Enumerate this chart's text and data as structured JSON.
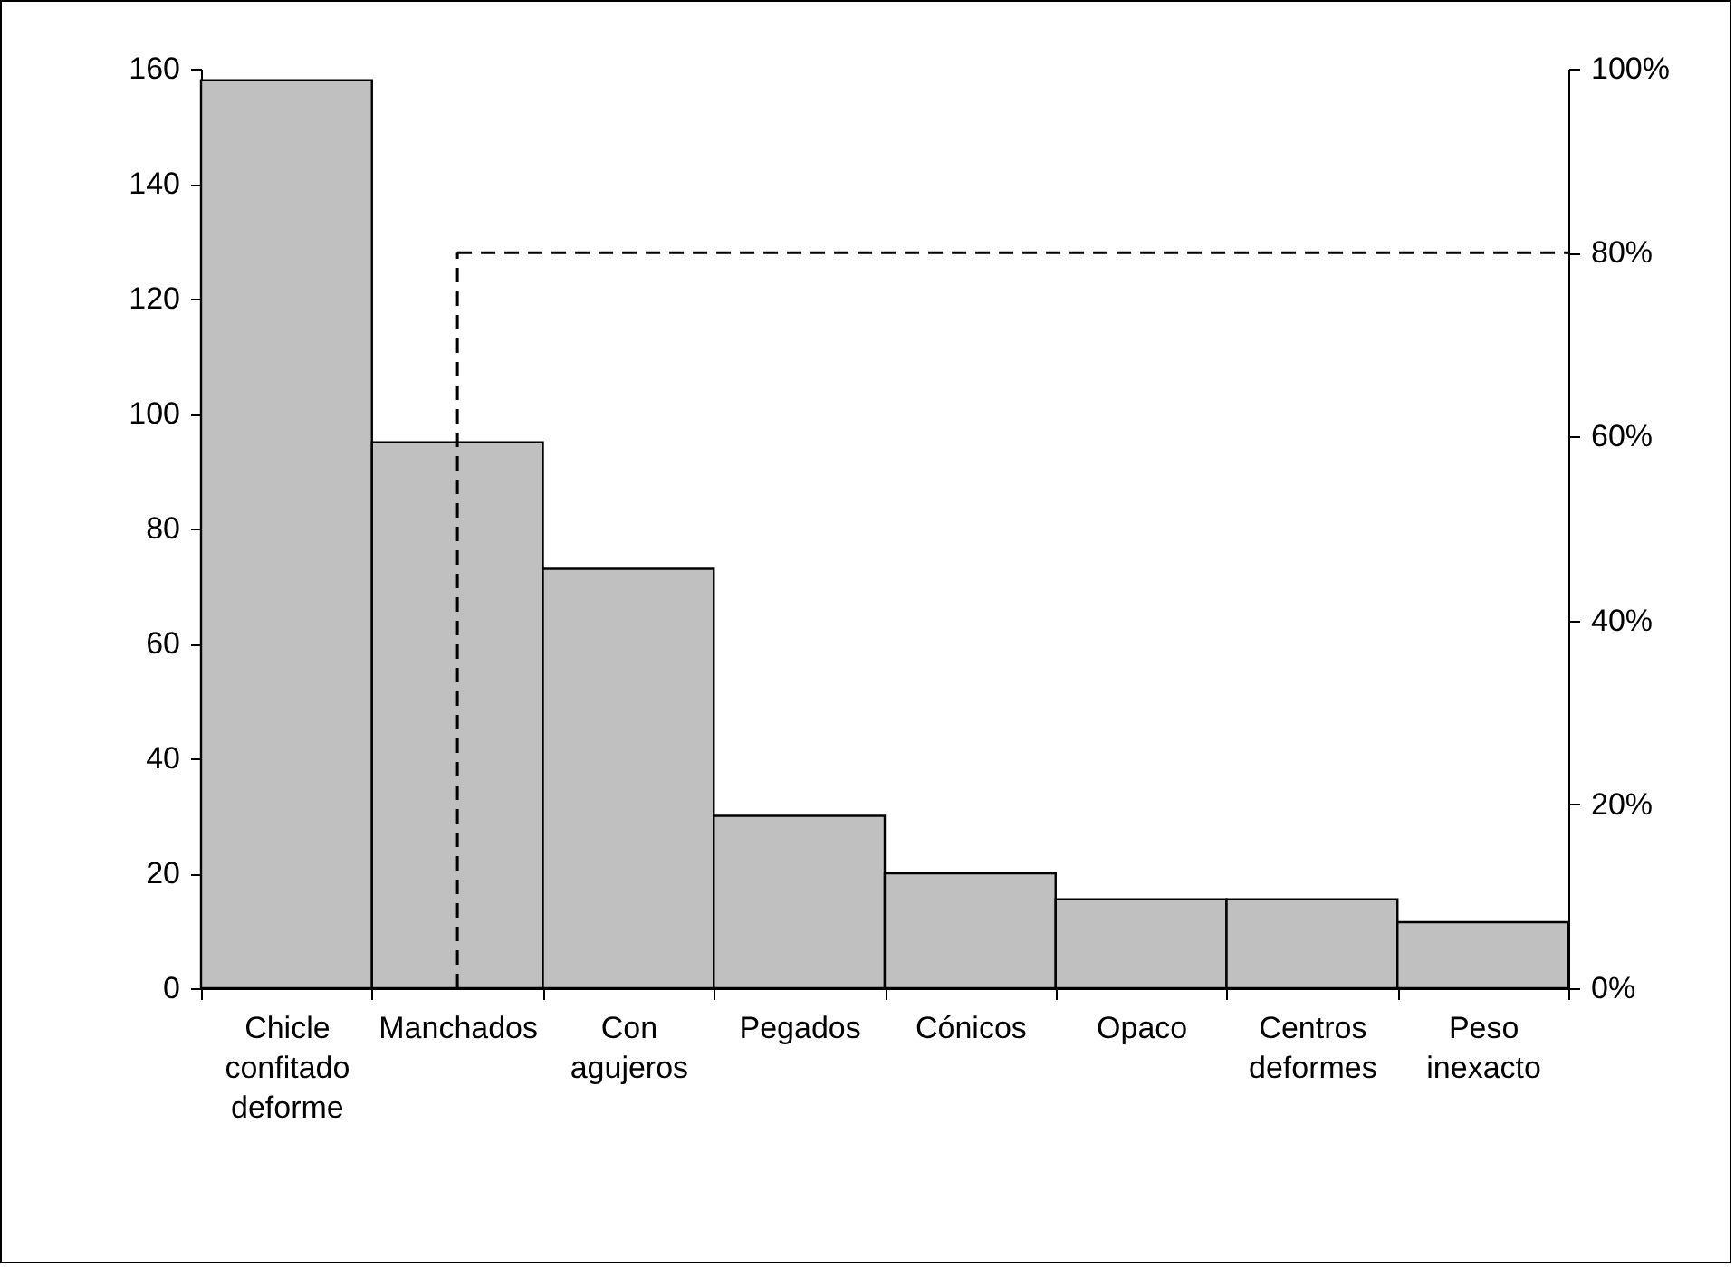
{
  "chart_data": {
    "type": "bar",
    "categories": [
      "Chicle confitado deforme",
      "Manchados",
      "Con agujeros",
      "Pegados",
      "Cónicos",
      "Opaco",
      "Centros deformes",
      "Peso inexacto"
    ],
    "values": [
      158,
      95,
      73,
      30,
      20,
      15.5,
      15.5,
      11.5
    ],
    "color": "#c0c0c0",
    "ylim": [
      0,
      160
    ],
    "yticks": [
      0,
      20,
      40,
      60,
      80,
      100,
      120,
      140,
      160
    ],
    "y2lim": [
      0,
      100
    ],
    "y2ticks": [
      {
        "value": 0,
        "label": "0%"
      },
      {
        "value": 20,
        "label": "20%"
      },
      {
        "value": 40,
        "label": "40%"
      },
      {
        "value": 60,
        "label": "60%"
      },
      {
        "value": 80,
        "label": "80%"
      },
      {
        "value": 100,
        "label": "100%"
      }
    ],
    "ref_lines": [
      {
        "axis": "y2",
        "value": 80,
        "line_style": "dashed",
        "color": "#000000"
      },
      {
        "axis": "x",
        "value": "Manchados",
        "line_style": "dashed",
        "color": "#000000"
      }
    ],
    "grid": false
  }
}
